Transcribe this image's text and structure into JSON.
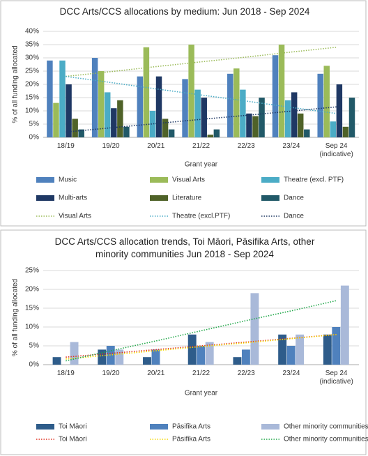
{
  "chart_data": [
    {
      "type": "bar",
      "title": "DCC Arts/CCS allocations by medium: Jun 2018 - Sep 2024",
      "xlabel": "Grant year",
      "ylabel": "% of all funding allocated",
      "categories": [
        "18/19",
        "19/20",
        "20/21",
        "21/22",
        "22/23",
        "23/24",
        "Sep 24 (indicative)"
      ],
      "ylim": [
        0,
        40
      ],
      "yticks": [
        {
          "value": 0,
          "label": "0%"
        },
        {
          "value": 5,
          "label": "5%"
        },
        {
          "value": 10,
          "label": "10%"
        },
        {
          "value": 15,
          "label": "15%"
        },
        {
          "value": 20,
          "label": "20%"
        },
        {
          "value": 25,
          "label": "25%"
        },
        {
          "value": 30,
          "label": "30%"
        },
        {
          "value": 35,
          "label": "35%"
        },
        {
          "value": 40,
          "label": "40%"
        }
      ],
      "grid": true,
      "series": [
        {
          "name": "Music",
          "color": "#4f81bd",
          "values": [
            29,
            30,
            23,
            22,
            24,
            31,
            24
          ]
        },
        {
          "name": "Visual Arts",
          "color": "#9bbb59",
          "values": [
            13,
            25,
            34,
            35,
            26,
            35,
            27
          ]
        },
        {
          "name": "Theatre (excl. PTF)",
          "color": "#4bacc6",
          "values": [
            29,
            17,
            10,
            18,
            18,
            14,
            6
          ]
        },
        {
          "name": "Multi-arts",
          "color": "#1f3864",
          "values": [
            20,
            11,
            23,
            15,
            9,
            17,
            20
          ]
        },
        {
          "name": "Literature",
          "color": "#4f6228",
          "values": [
            7,
            14,
            7,
            1,
            8,
            9,
            4
          ]
        },
        {
          "name": "Dance",
          "color": "#215968",
          "values": [
            3,
            4,
            3,
            3,
            15,
            3,
            15
          ]
        }
      ],
      "trendlines": [
        {
          "name": "Visual Arts",
          "color": "#9bbb59",
          "values": [
            23,
            24.8,
            26.7,
            28.5,
            30.3,
            32.2,
            34
          ]
        },
        {
          "name": "Theatre (excl.PTF)",
          "color": "#4bacc6",
          "values": [
            23,
            20.7,
            18.3,
            16,
            13.7,
            11.3,
            9
          ]
        },
        {
          "name": "Dance",
          "color": "#1f3864",
          "values": [
            2,
            3.6,
            5.2,
            6.8,
            8.3,
            9.9,
            11.5
          ]
        }
      ]
    },
    {
      "type": "bar",
      "title": "DCC Arts/CCS allocation trends, Toi Māori, Pāsifika Arts, other minority communities  Jun 2018 - Sep 2024",
      "xlabel": "Grant year",
      "ylabel": "% of all funding allocated",
      "categories": [
        "18/19",
        "19/20",
        "20/21",
        "21/22",
        "22/23",
        "23/24",
        "Sep 24 (indicative)"
      ],
      "ylim": [
        0,
        25
      ],
      "yticks": [
        {
          "value": 0,
          "label": "0%"
        },
        {
          "value": 5,
          "label": "5%"
        },
        {
          "value": 10,
          "label": "10%"
        },
        {
          "value": 15,
          "label": "15%"
        },
        {
          "value": 20,
          "label": "20%"
        },
        {
          "value": 25,
          "label": "25%"
        }
      ],
      "grid": true,
      "series": [
        {
          "name": "Toi Māori",
          "color": "#2e5c8a",
          "values": [
            2,
            4,
            2,
            8,
            2,
            8,
            8
          ]
        },
        {
          "name": "Pāsifika Arts",
          "color": "#4f81bd",
          "values": [
            0,
            5,
            4,
            5,
            4,
            5,
            10
          ]
        },
        {
          "name": "Other minority communities",
          "color": "#a9b9d9",
          "values": [
            6,
            4,
            0,
            6,
            19,
            8,
            21
          ]
        }
      ],
      "trendlines": [
        {
          "name": "Toi Māori",
          "color": "#e03020",
          "values": [
            2,
            3,
            4,
            5,
            6,
            7,
            8
          ]
        },
        {
          "name": "Pāsifika Arts",
          "color": "#f5d800",
          "values": [
            1.5,
            2.6,
            3.7,
            4.8,
            5.8,
            6.9,
            8
          ]
        },
        {
          "name": "Other minority communities",
          "color": "#22a84a",
          "values": [
            1,
            3.7,
            6.3,
            9,
            11.7,
            14.3,
            17
          ]
        }
      ]
    }
  ]
}
